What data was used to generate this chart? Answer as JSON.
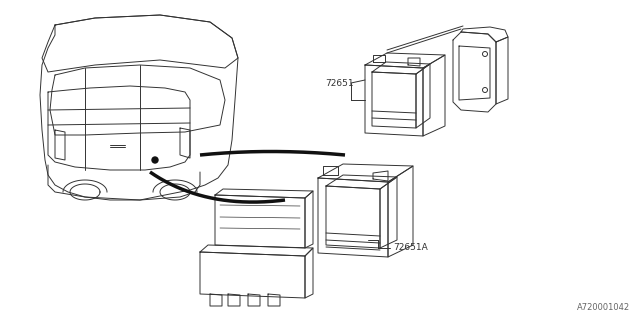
{
  "bg_color": "#ffffff",
  "line_color": "#333333",
  "thick_line_color": "#111111",
  "label_72651": "72651",
  "label_72651A": "72651A",
  "watermark": "A720001042",
  "fig_width": 6.4,
  "fig_height": 3.2,
  "dpi": 100
}
